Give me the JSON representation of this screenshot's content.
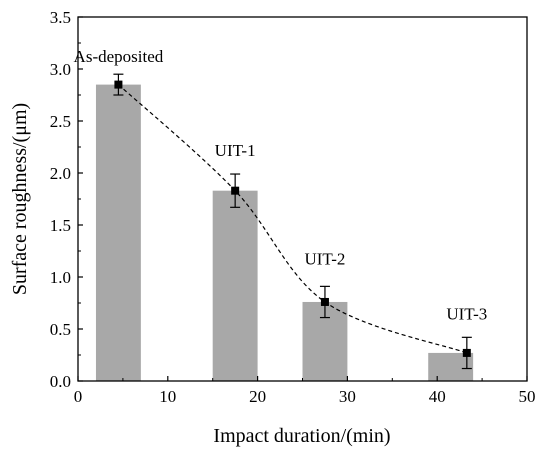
{
  "chart_data": {
    "type": "bar",
    "title": "",
    "xlabel": "Impact duration/(min)",
    "ylabel": "Surface roughness/(μm)",
    "xlim": [
      0,
      50
    ],
    "ylim": [
      0,
      3.5
    ],
    "xticks": [
      "0",
      "10",
      "20",
      "30",
      "40",
      "50"
    ],
    "yticks": [
      "0.0",
      "0.5",
      "1.0",
      "1.5",
      "2.0",
      "2.5",
      "3.0",
      "3.5"
    ],
    "grid": false,
    "legend": "none",
    "bar_color": "#a8a8a8",
    "trend_line": "dashed",
    "bars": [
      {
        "label": "As-deposited",
        "x": 4.5,
        "value": 2.85,
        "error": 0.1,
        "x_start": 2,
        "x_end": 7
      },
      {
        "label": "UIT-1",
        "x": 17.5,
        "value": 1.83,
        "error": 0.16,
        "x_start": 15,
        "x_end": 20
      },
      {
        "label": "UIT-2",
        "x": 27.5,
        "value": 0.76,
        "error": 0.15,
        "x_start": 25,
        "x_end": 30
      },
      {
        "label": "UIT-3",
        "x": 43.3,
        "value": 0.27,
        "error": 0.15,
        "x_start": 39,
        "x_end": 44
      }
    ]
  }
}
